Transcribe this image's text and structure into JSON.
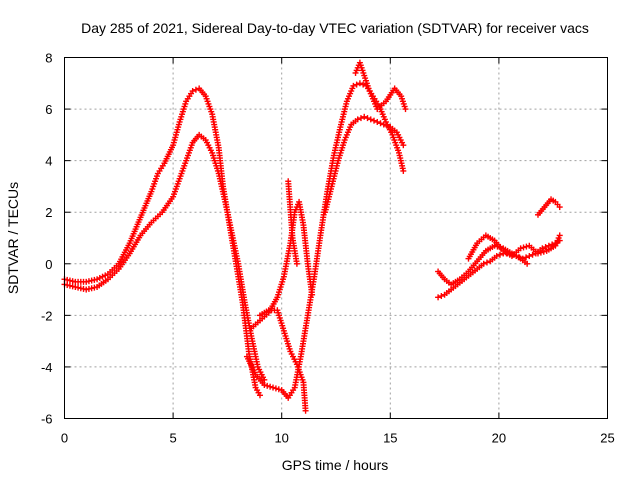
{
  "chart_data": {
    "type": "scatter",
    "title": "Day 285 of 2021, Sidereal Day-to-day VTEC variation (SDTVAR) for receiver vacs",
    "xlabel": "GPS time / hours",
    "ylabel": "SDTVAR / TECUs",
    "xlim": [
      0,
      25
    ],
    "ylim": [
      -6,
      8
    ],
    "xticks": [
      "0",
      "5",
      "10",
      "15",
      "20",
      "25"
    ],
    "yticks": [
      "-6",
      "-4",
      "-2",
      "0",
      "2",
      "4",
      "6",
      "8"
    ],
    "grid": true,
    "marker": "+",
    "color": "#ff0000",
    "series": [
      {
        "x": [
          0.0,
          0.5,
          1.0,
          1.5,
          2.0,
          2.5,
          3.0,
          3.5,
          4.0,
          4.3,
          4.6,
          5.0,
          5.3,
          5.6,
          5.9,
          6.2,
          6.5,
          6.8,
          7.1,
          7.3,
          7.6,
          7.9,
          8.2,
          8.5,
          8.8,
          9.0
        ],
        "y": [
          -0.6,
          -0.7,
          -0.7,
          -0.6,
          -0.4,
          0.0,
          0.8,
          1.8,
          2.8,
          3.5,
          3.9,
          4.6,
          5.5,
          6.3,
          6.7,
          6.8,
          6.5,
          5.8,
          4.5,
          3.0,
          1.5,
          0.0,
          -1.5,
          -3.5,
          -4.8,
          -5.1
        ]
      },
      {
        "x": [
          0.0,
          0.5,
          1.0,
          1.5,
          2.0,
          2.5,
          3.0,
          3.5,
          4.0,
          4.5,
          5.0,
          5.3,
          5.6,
          5.9,
          6.2,
          6.5,
          6.8,
          7.1,
          7.4,
          7.7,
          8.0,
          8.3,
          8.6,
          8.9,
          9.2
        ],
        "y": [
          -0.8,
          -0.9,
          -1.0,
          -0.9,
          -0.6,
          -0.2,
          0.4,
          1.1,
          1.6,
          2.0,
          2.6,
          3.3,
          4.0,
          4.7,
          5.0,
          4.8,
          4.3,
          3.5,
          2.4,
          1.2,
          0.0,
          -1.5,
          -2.8,
          -4.0,
          -4.5
        ]
      },
      {
        "x": [
          8.4,
          8.8,
          9.2,
          9.6,
          10.0,
          10.3,
          10.6,
          10.9,
          11.2,
          11.5,
          11.8,
          12.1,
          12.4,
          12.7,
          13.0,
          13.3,
          13.6,
          13.9,
          14.2,
          14.5,
          14.8,
          15.1,
          15.4,
          15.6
        ],
        "y": [
          -3.6,
          -4.3,
          -4.7,
          -4.8,
          -4.9,
          -5.2,
          -4.8,
          -3.5,
          -2.0,
          -0.5,
          1.2,
          2.8,
          4.2,
          5.3,
          6.3,
          6.9,
          7.0,
          6.9,
          6.5,
          6.1,
          5.5,
          5.0,
          4.3,
          3.6
        ]
      },
      {
        "x": [
          12.0,
          12.3,
          12.6,
          12.9,
          13.2,
          13.5,
          13.8,
          14.1,
          14.4,
          14.7,
          15.0,
          15.3,
          15.6
        ],
        "y": [
          2.0,
          3.0,
          4.0,
          4.8,
          5.4,
          5.6,
          5.7,
          5.6,
          5.5,
          5.4,
          5.3,
          5.1,
          4.6
        ]
      },
      {
        "x": [
          13.4,
          13.6,
          14.0,
          14.4,
          14.8,
          15.2,
          15.5,
          15.7
        ],
        "y": [
          7.4,
          7.8,
          6.8,
          6.0,
          6.3,
          6.8,
          6.5,
          6.0
        ]
      },
      {
        "x": [
          8.6,
          9.0,
          9.4,
          9.8,
          10.1,
          10.4,
          10.6,
          10.8,
          11.0,
          11.2,
          11.4
        ],
        "y": [
          -2.5,
          -2.2,
          -1.9,
          -1.3,
          -0.5,
          0.8,
          2.0,
          2.4,
          1.5,
          0.0,
          -1.2
        ]
      },
      {
        "x": [
          9.0,
          9.4,
          9.8,
          10.1,
          10.4,
          10.7,
          11.0,
          11.1
        ],
        "y": [
          -2.0,
          -1.8,
          -1.8,
          -2.6,
          -3.4,
          -3.9,
          -4.6,
          -5.7
        ]
      },
      {
        "x": [
          10.3,
          10.5,
          10.7
        ],
        "y": [
          3.2,
          1.0,
          0.0
        ]
      },
      {
        "x": [
          17.2,
          17.5,
          17.8,
          18.1,
          18.4,
          18.7,
          19.0,
          19.3,
          19.6,
          19.9,
          20.2,
          20.5,
          20.8,
          21.1,
          21.4,
          21.7,
          22.0,
          22.3,
          22.6,
          22.8
        ],
        "y": [
          -1.3,
          -1.2,
          -1.0,
          -0.8,
          -0.6,
          -0.4,
          -0.2,
          0.0,
          0.1,
          0.3,
          0.4,
          0.4,
          0.3,
          0.2,
          0.3,
          0.4,
          0.6,
          0.7,
          0.8,
          0.9
        ]
      },
      {
        "x": [
          17.2,
          17.5,
          17.8,
          18.2,
          18.6,
          19.0,
          19.4,
          19.8,
          20.2,
          20.6,
          21.0,
          21.3
        ],
        "y": [
          -0.3,
          -0.6,
          -0.8,
          -0.6,
          -0.3,
          0.1,
          0.5,
          0.7,
          0.6,
          0.4,
          0.2,
          0.0
        ]
      },
      {
        "x": [
          18.6,
          19.0,
          19.4,
          19.8,
          20.2,
          20.6,
          21.0,
          21.4,
          21.8,
          22.2,
          22.6,
          22.8
        ],
        "y": [
          0.2,
          0.8,
          1.1,
          0.9,
          0.5,
          0.3,
          0.6,
          0.7,
          0.4,
          0.5,
          0.7,
          1.1
        ]
      },
      {
        "x": [
          21.8,
          22.1,
          22.4,
          22.6,
          22.8
        ],
        "y": [
          1.9,
          2.2,
          2.5,
          2.4,
          2.2
        ]
      }
    ]
  }
}
